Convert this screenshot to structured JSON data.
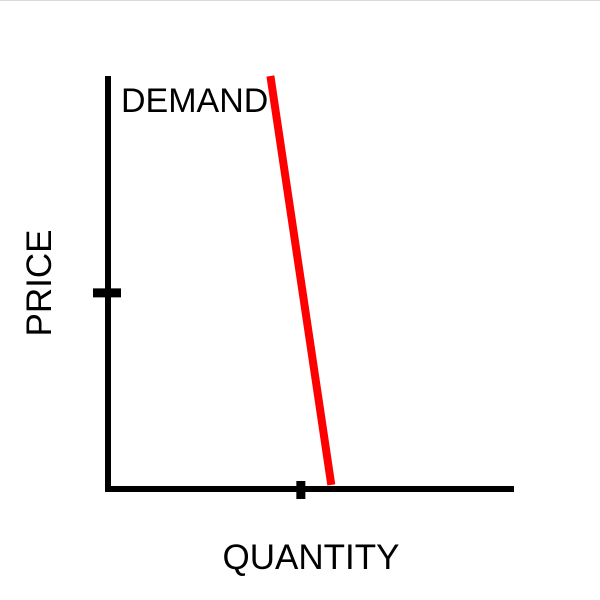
{
  "chart_data": {
    "type": "line",
    "title": "",
    "xlabel": "QUANTITY",
    "ylabel": "PRICE",
    "xlim": [
      0,
      100
    ],
    "ylim": [
      0,
      100
    ],
    "grid": false,
    "series": [
      {
        "name": "DEMAND",
        "x": [
          40,
          55
        ],
        "y": [
          100,
          1
        ],
        "color": "#ff0000"
      }
    ],
    "annotations": [
      {
        "text": "DEMAND",
        "anchor_series": "DEMAND"
      }
    ],
    "x_tick_marks": [
      47.5
    ],
    "y_tick_marks": [
      47.5
    ]
  },
  "colors": {
    "axis": "#000000",
    "demand": "#ff0000",
    "background": "#ffffff"
  }
}
